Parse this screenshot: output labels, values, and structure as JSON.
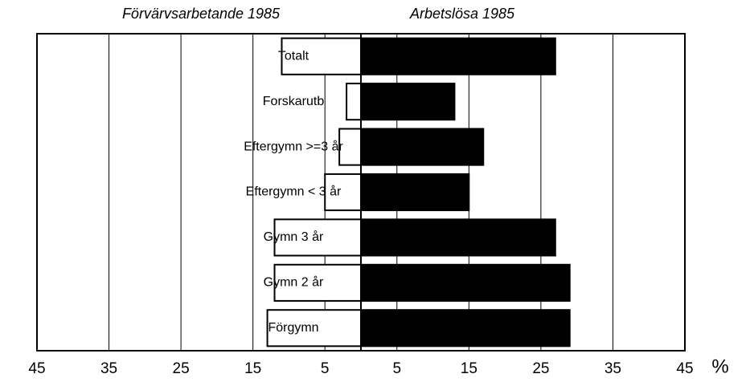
{
  "chart_data": {
    "type": "bar",
    "orientation": "horizontal",
    "stacked": false,
    "categories": [
      "Totalt",
      "Forskarutb",
      "Eftergymn >=3 år",
      "Eftergymn < 3 år",
      "Gymn 3 år",
      "Gymn 2 år",
      "Förgymn"
    ],
    "series": [
      {
        "name": "Förvärvsarbetande 1985",
        "color": "#ffffff",
        "values": [
          -11,
          -2,
          -3,
          -5,
          -12,
          -12,
          -13
        ]
      },
      {
        "name": "Arbetslösa 1985",
        "color": "#000000",
        "values": [
          27,
          13,
          17,
          15,
          27,
          29,
          29
        ]
      }
    ],
    "xlim": [
      -45,
      45
    ],
    "xticks": [
      {
        "value": -45,
        "label": "45"
      },
      {
        "value": -35,
        "label": "35"
      },
      {
        "value": -25,
        "label": "25"
      },
      {
        "value": -15,
        "label": "15"
      },
      {
        "value": -5,
        "label": "5"
      },
      5,
      15,
      25,
      35,
      45
    ],
    "x_unit": "%",
    "grid": true
  }
}
